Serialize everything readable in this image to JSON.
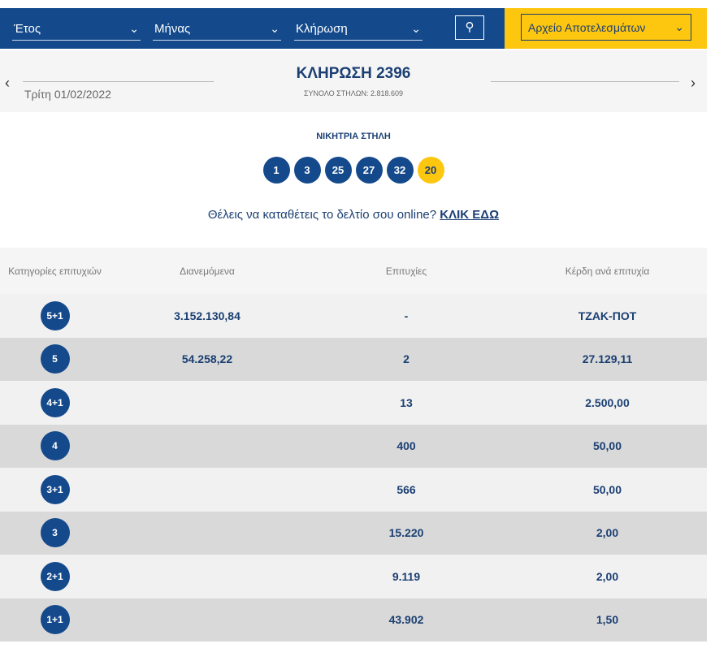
{
  "nav": {
    "year": "Έτος",
    "month": "Μήνας",
    "draw": "Κλήρωση",
    "archive": "Αρχείο Αποτελεσμάτων",
    "search_icon": "search-icon"
  },
  "header": {
    "title": "ΚΛΗΡΩΣΗ 2396",
    "total": "ΣΥΝΟΛΟ ΣΤΗΛΩΝ: 2.818.609",
    "date": "Τρίτη 01/02/2022"
  },
  "winning": {
    "label": "ΝΙΚΗΤΡΙΑ ΣΤΗΛΗ",
    "numbers": [
      "1",
      "3",
      "25",
      "27",
      "32"
    ],
    "joker": "20",
    "colors": {
      "main": "#144a8c",
      "joker": "#fdc60f"
    }
  },
  "online": {
    "text": "Θέλεις να καταθέτεις το δελτίο σου online?",
    "link": "ΚΛΙΚ ΕΔΩ"
  },
  "table": {
    "headers": [
      "Κατηγορίες επιτυχιών",
      "Διανεμόμενα",
      "Επιτυχίες",
      "Κέρδη ανά επιτυχία"
    ],
    "rows": [
      {
        "cat": "5+1",
        "dist": "3.152.130,84",
        "wins": "-",
        "prize": "ΤΖΑΚ-ΠΟΤ"
      },
      {
        "cat": "5",
        "dist": "54.258,22",
        "wins": "2",
        "prize": "27.129,11"
      },
      {
        "cat": "4+1",
        "dist": "",
        "wins": "13",
        "prize": "2.500,00"
      },
      {
        "cat": "4",
        "dist": "",
        "wins": "400",
        "prize": "50,00"
      },
      {
        "cat": "3+1",
        "dist": "",
        "wins": "566",
        "prize": "50,00"
      },
      {
        "cat": "3",
        "dist": "",
        "wins": "15.220",
        "prize": "2,00"
      },
      {
        "cat": "2+1",
        "dist": "",
        "wins": "9.119",
        "prize": "2,00"
      },
      {
        "cat": "1+1",
        "dist": "",
        "wins": "43.902",
        "prize": "1,50"
      }
    ]
  }
}
